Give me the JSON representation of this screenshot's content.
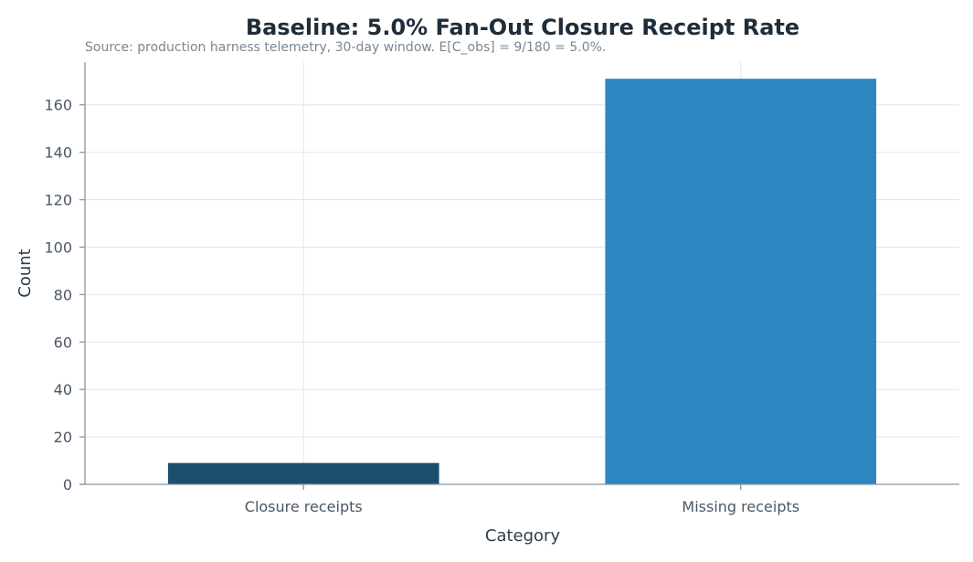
{
  "chart_data": {
    "type": "bar",
    "title": "Baseline: 5.0% Fan-Out Closure Receipt Rate",
    "subtitle": "Source: production harness telemetry, 30-day window. E[C_obs] = 9/180 = 5.0%.",
    "xlabel": "Category",
    "ylabel": "Count",
    "categories": [
      "Closure receipts",
      "Missing receipts"
    ],
    "values": [
      9,
      171
    ],
    "ylim": [
      0,
      178
    ],
    "yticks": [
      0,
      20,
      40,
      60,
      80,
      100,
      120,
      140,
      160
    ],
    "grid": true,
    "colors": [
      "#1c4e6e",
      "#2e86c1"
    ]
  }
}
